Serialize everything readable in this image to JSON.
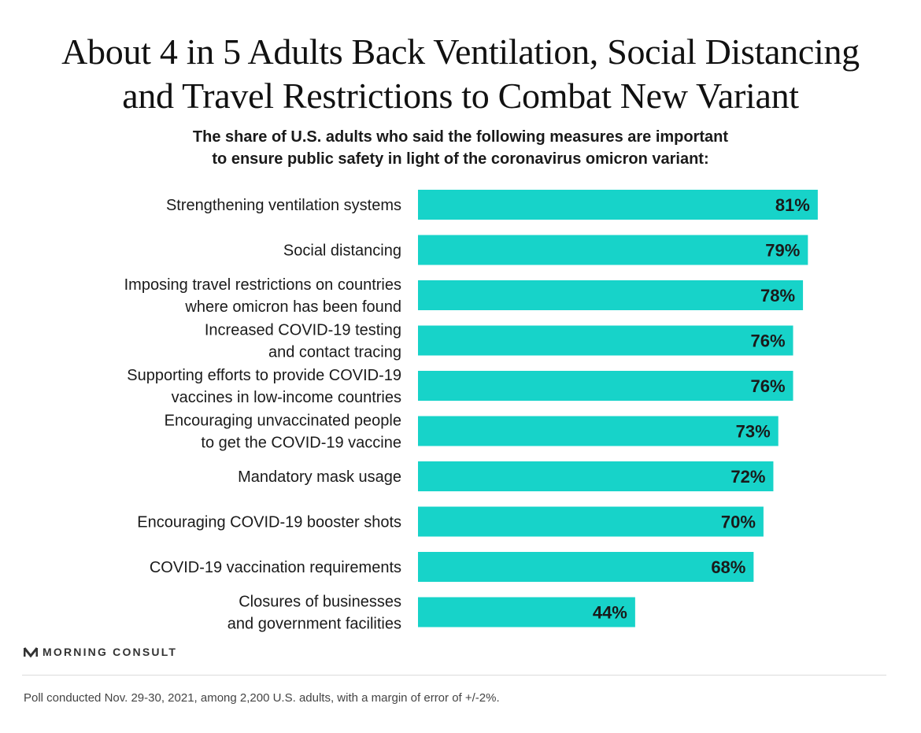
{
  "title_lines": [
    "About 4 in 5 Adults Back Ventilation, Social Distancing",
    "and Travel Restrictions to Combat New Variant"
  ],
  "subtitle_lines": [
    "The share of U.S. adults who said the following measures are important",
    "to ensure public safety in light of the coronavirus omicron variant:"
  ],
  "colors": {
    "bar": "#17d3c9",
    "text": "#1a1a1a"
  },
  "chart_data": {
    "type": "bar",
    "orientation": "horizontal",
    "categories": [
      [
        "Strengthening ventilation systems"
      ],
      [
        "Social distancing"
      ],
      [
        "Imposing travel restrictions on countries",
        "where omicron has been found"
      ],
      [
        "Increased COVID-19 testing",
        "and contact tracing"
      ],
      [
        "Supporting efforts to provide COVID-19",
        "vaccines in low-income countries"
      ],
      [
        "Encouraging unvaccinated people",
        "to get the COVID-19 vaccine"
      ],
      [
        "Mandatory mask usage"
      ],
      [
        "Encouraging COVID-19 booster shots"
      ],
      [
        "COVID-19 vaccination requirements"
      ],
      [
        "Closures of businesses",
        "and government facilities"
      ]
    ],
    "values": [
      81,
      79,
      78,
      76,
      76,
      73,
      72,
      70,
      68,
      44
    ],
    "value_labels": [
      "81%",
      "79%",
      "78%",
      "76%",
      "76%",
      "73%",
      "72%",
      "70%",
      "68%",
      "44%"
    ],
    "xlim": [
      0,
      100
    ],
    "grid": false,
    "legend": "none"
  },
  "brand": {
    "icon": "morning-consult-logo-icon",
    "name": "MORNING CONSULT"
  },
  "footnote": "Poll conducted Nov. 29-30, 2021, among 2,200 U.S. adults, with a margin of error of +/-2%."
}
